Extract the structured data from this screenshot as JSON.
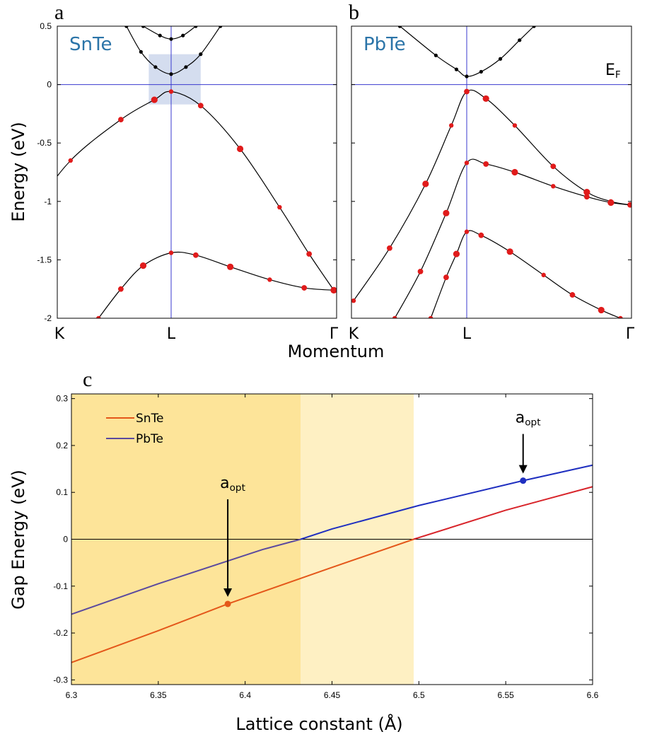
{
  "chart_data": [
    {
      "panel": "a",
      "type": "line",
      "material": "SnTe",
      "ylabel": "Energy (eV)",
      "ylim": [
        -2,
        0.5
      ],
      "yticks": [
        "0.5",
        "0",
        "-0.5",
        "-1",
        "-1.5",
        "-2"
      ],
      "yticks_values": [
        0.5,
        0,
        -0.5,
        -1,
        -1.5,
        -2
      ],
      "kpoints": [
        "K",
        "L",
        "Γ"
      ],
      "kpoint_positions": [
        0,
        1,
        2.65
      ],
      "highlight_box": {
        "x": [
          0.8,
          1.3
        ],
        "y": [
          -0.17,
          0.26
        ]
      },
      "series": [
        {
          "color": "#000000",
          "points": [
            [
              0.6,
              0.5
            ],
            [
              0.73,
              0.28
            ],
            [
              0.86,
              0.15
            ],
            [
              1.0,
              0.09
            ],
            [
              1.15,
              0.15
            ],
            [
              1.3,
              0.26
            ],
            [
              1.5,
              0.5
            ]
          ]
        },
        {
          "color": "#000000",
          "points": [
            [
              0.75,
              0.5
            ],
            [
              0.9,
              0.42
            ],
            [
              1.0,
              0.39
            ],
            [
              1.12,
              0.42
            ],
            [
              1.25,
              0.5
            ]
          ]
        },
        {
          "color": "#000000",
          "points": [
            [
              -0.75,
              -2
            ],
            [
              -0.45,
              -1.55
            ],
            [
              -0.2,
              -1.05
            ],
            [
              0.1,
              -0.65
            ],
            [
              0.55,
              -0.3
            ],
            [
              0.85,
              -0.13
            ],
            [
              1.0,
              -0.06
            ],
            [
              1.3,
              -0.18
            ],
            [
              1.7,
              -0.55
            ],
            [
              2.1,
              -1.05
            ],
            [
              2.4,
              -1.45
            ],
            [
              2.65,
              -1.76
            ]
          ]
        },
        {
          "color": "#000000",
          "points": [
            [
              0.35,
              -2
            ],
            [
              0.55,
              -1.75
            ],
            [
              0.75,
              -1.55
            ],
            [
              1.0,
              -1.44
            ],
            [
              1.25,
              -1.46
            ],
            [
              1.6,
              -1.56
            ],
            [
              2.0,
              -1.67
            ],
            [
              2.35,
              -1.74
            ],
            [
              2.65,
              -1.76
            ]
          ]
        }
      ]
    },
    {
      "panel": "b",
      "type": "line",
      "material": "PbTe",
      "fermi_label": "E",
      "fermi_label_sub": "F",
      "ylim": [
        -2,
        0.5
      ],
      "kpoints": [
        "K",
        "L",
        "Γ"
      ],
      "kpoint_positions": [
        -1.1,
        0,
        1.7
      ],
      "series": [
        {
          "color": "#000000",
          "points": [
            [
              -0.65,
              0.5
            ],
            [
              -0.3,
              0.25
            ],
            [
              -0.1,
              0.13
            ],
            [
              0.0,
              0.07
            ],
            [
              0.15,
              0.11
            ],
            [
              0.35,
              0.22
            ],
            [
              0.55,
              0.38
            ],
            [
              0.7,
              0.5
            ]
          ]
        },
        {
          "color": "#000000",
          "points": [
            [
              -1.1,
              -1.85
            ],
            [
              -0.75,
              -1.4
            ],
            [
              -0.4,
              -0.85
            ],
            [
              -0.15,
              -0.35
            ],
            [
              0.0,
              -0.06
            ],
            [
              0.2,
              -0.12
            ],
            [
              0.5,
              -0.35
            ],
            [
              0.9,
              -0.7
            ],
            [
              1.25,
              -0.92
            ],
            [
              1.5,
              -1.0
            ],
            [
              1.7,
              -1.03
            ]
          ]
        },
        {
          "color": "#000000",
          "points": [
            [
              -0.7,
              -2
            ],
            [
              -0.45,
              -1.6
            ],
            [
              -0.2,
              -1.1
            ],
            [
              0.0,
              -0.67
            ],
            [
              0.2,
              -0.68
            ],
            [
              0.5,
              -0.75
            ],
            [
              0.9,
              -0.87
            ],
            [
              1.25,
              -0.96
            ],
            [
              1.5,
              -1.01
            ],
            [
              1.7,
              -1.03
            ]
          ]
        },
        {
          "color": "#000000",
          "points": [
            [
              -0.35,
              -2
            ],
            [
              -0.2,
              -1.65
            ],
            [
              -0.1,
              -1.45
            ],
            [
              0.0,
              -1.26
            ],
            [
              0.15,
              -1.29
            ],
            [
              0.45,
              -1.43
            ],
            [
              0.8,
              -1.63
            ],
            [
              1.1,
              -1.8
            ],
            [
              1.4,
              -1.93
            ],
            [
              1.6,
              -2.0
            ]
          ]
        }
      ]
    },
    {
      "panel": "c",
      "type": "line",
      "xlabel": "Lattice constant (Å)",
      "ylabel": "Gap Energy (eV)",
      "xlim": [
        6.3,
        6.6
      ],
      "ylim": [
        -0.31,
        0.31
      ],
      "xticks": [
        "6.3",
        "6.35",
        "6.4",
        "6.45",
        "6.5",
        "6.55",
        "6.6"
      ],
      "xticks_values": [
        6.3,
        6.35,
        6.4,
        6.45,
        6.5,
        6.55,
        6.6
      ],
      "yticks": [
        "0.3",
        "0.2",
        "0.1",
        "0",
        "-0.1",
        "-0.2",
        "-0.3"
      ],
      "yticks_values": [
        0.3,
        0.2,
        0.1,
        0,
        -0.1,
        -0.2,
        -0.3
      ],
      "shaded_regions": [
        {
          "x": [
            6.3,
            6.432
          ],
          "color": "#fde499"
        },
        {
          "x": [
            6.432,
            6.497
          ],
          "color": "#fef0c3"
        }
      ],
      "series": [
        {
          "name": "SnTe",
          "legend_color": "#e4571a",
          "x": [
            6.3,
            6.35,
            6.39,
            6.45,
            6.497,
            6.55,
            6.6
          ],
          "y": [
            -0.263,
            -0.195,
            -0.138,
            -0.06,
            0.0,
            0.062,
            0.112
          ]
        },
        {
          "name": "PbTe",
          "legend_color": "#5b4a9e",
          "x": [
            6.3,
            6.35,
            6.41,
            6.432,
            6.45,
            6.5,
            6.56,
            6.6
          ],
          "y": [
            -0.16,
            -0.095,
            -0.022,
            0.0,
            0.022,
            0.072,
            0.125,
            0.158
          ]
        }
      ],
      "markers": [
        {
          "label": "a",
          "label_sub": "opt",
          "x": 6.39,
          "y": -0.138,
          "color": "#e4571a"
        },
        {
          "label": "a",
          "label_sub": "opt",
          "x": 6.56,
          "y": 0.125,
          "color": "#1f2fc0"
        }
      ]
    }
  ]
}
